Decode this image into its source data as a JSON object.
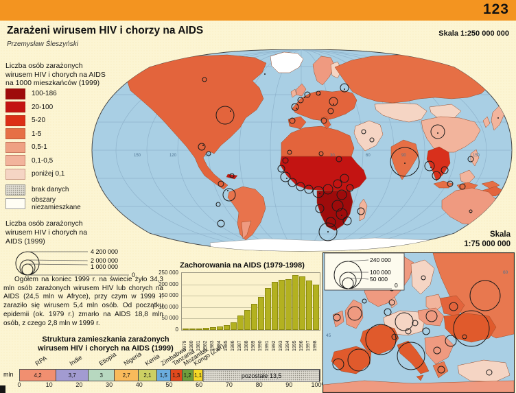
{
  "page": {
    "number": "123",
    "scale_label": "Skala 1:250 000 000"
  },
  "header": {
    "title": "Zarażeni wirusem HIV i chorzy na AIDS",
    "author": "Przemysław Śleszyński"
  },
  "choropleth_legend": {
    "title_lines": [
      "Liczba osób zarażonych",
      "wirusem HIV i chorych na AIDS",
      "na 1000 mieszkańców (1999)"
    ],
    "classes": [
      {
        "label": "100-186",
        "color": "#9e0b0b"
      },
      {
        "label": "20-100",
        "color": "#c31412"
      },
      {
        "label": "5-20",
        "color": "#dc2f16"
      },
      {
        "label": "1-5",
        "color": "#e66f45"
      },
      {
        "label": "0,5-1",
        "color": "#efa183"
      },
      {
        "label": "0,1-0,5",
        "color": "#f2b49c"
      },
      {
        "label": "poniżej 0,1",
        "color": "#f5d5c4"
      }
    ],
    "no_data_label": "brak danych",
    "uninhabited_label_lines": [
      "obszary",
      "niezamieszkane"
    ]
  },
  "circle_legend": {
    "title_lines": [
      "Liczba osób zarażonych",
      "wirusem HIV i chorych na",
      "AIDS (1999)"
    ],
    "values": [
      "4 200 000",
      "2 000 000",
      "1 000 000"
    ],
    "zero_label": "0"
  },
  "body_text": "Ogółem na koniec 1999 r. na świecie żyło 34,3 mln osób zarażonych wirusem HIV lub chorych na AIDS (24,5 mln w Afryce), przy czym w 1999 r. zaraziło się wirusem 5,4 mln osób. Od początku epidemii (ok. 1979 r.) zmarło na AIDS 18,8 mln osób, z czego 2,8 mln w 1999 r.",
  "world_map": {
    "ocean_color": "#a9cfe4",
    "graticule_labels": [
      "150",
      "120",
      "90",
      "30",
      "60",
      "90",
      "150"
    ]
  },
  "inset_map": {
    "scale_line1": "Skala",
    "scale_line2": "1:75 000 000",
    "circle_values": [
      "240 000",
      "100 000",
      "50 000"
    ],
    "zero_label": "0",
    "graticule_labels": [
      "60",
      "45"
    ]
  },
  "chart_data": [
    {
      "type": "bar",
      "title": "Zachorowania na AIDS (1979-1998)",
      "categories": [
        "1979",
        "1980",
        "1981",
        "1982",
        "1983",
        "1984",
        "1985",
        "1986",
        "1987",
        "1988",
        "1989",
        "1990",
        "1991",
        "1992",
        "1993",
        "1994",
        "1995",
        "1996",
        "1997",
        "1998"
      ],
      "values": [
        400,
        800,
        1500,
        3000,
        6000,
        9000,
        16000,
        27000,
        56000,
        80000,
        107000,
        140000,
        177000,
        205000,
        215000,
        218000,
        235000,
        230000,
        212000,
        192000
      ],
      "xlabel": "",
      "ylabel": "",
      "ylim": [
        0,
        250000
      ],
      "yticks": [
        "250 000",
        "200 000",
        "150 000",
        "100 000",
        "50 000",
        "0"
      ],
      "bar_color": "#b3b120",
      "grid": true,
      "legend": "none"
    },
    {
      "type": "stacked-bar",
      "title_lines": [
        "Struktura zamieszkania zarażonych",
        "wirusem HIV i chorych na AIDS (1999)"
      ],
      "unit_label": "mln",
      "total": 34.3,
      "segments": [
        {
          "label": "RPA",
          "value": "4,2",
          "num": 4.2,
          "color": "#f18f70"
        },
        {
          "label": "Indie",
          "value": "3,7",
          "num": 3.7,
          "color": "#a29bd1"
        },
        {
          "label": "Etiopia",
          "value": "3",
          "num": 3.0,
          "color": "#b7d8c0"
        },
        {
          "label": "Nigeria",
          "value": "2,7",
          "num": 2.7,
          "color": "#f9ba5b"
        },
        {
          "label": "Kenia",
          "value": "2,1",
          "num": 2.1,
          "color": "#ccd063"
        },
        {
          "label": "Zimbabwe",
          "value": "1,5",
          "num": 1.5,
          "color": "#6badde"
        },
        {
          "label": "Tanzania",
          "value": "1,3",
          "num": 1.3,
          "color": "#e1491c"
        },
        {
          "label": "Mozambik",
          "value": "1,2",
          "num": 1.2,
          "color": "#6f9e3c"
        },
        {
          "label": "Kongo (Zair)",
          "value": "1,1",
          "num": 1.1,
          "color": "#f5d826"
        }
      ],
      "rest": {
        "label": "pozostałe 13,5",
        "num": 13.5
      },
      "axis_ticks": [
        "0",
        "10",
        "20",
        "30",
        "40",
        "50",
        "60",
        "70",
        "80",
        "90",
        "100%"
      ]
    }
  ]
}
